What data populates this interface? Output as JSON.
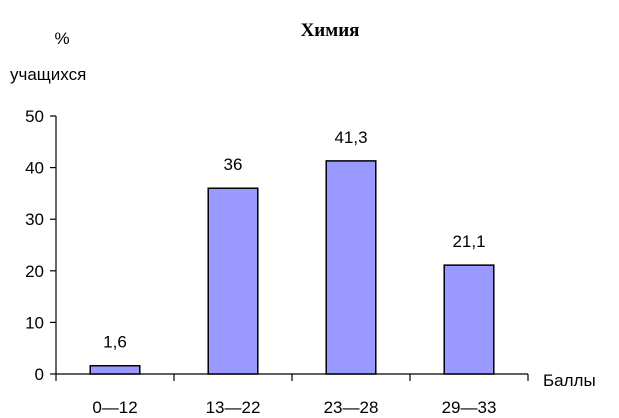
{
  "chart_data": {
    "type": "bar",
    "title": "Химия",
    "ylabel_line1": "%",
    "ylabel_line2": "учащихся",
    "xlabel": "Баллы",
    "categories": [
      "0—12",
      "13—22",
      "23—28",
      "29—33"
    ],
    "values": [
      1.6,
      36,
      41.3,
      21.1
    ],
    "value_labels": [
      "1,6",
      "36",
      "41,3",
      "21,1"
    ],
    "ylim": [
      0,
      50
    ],
    "yticks": [
      0,
      10,
      20,
      30,
      40,
      50
    ],
    "grid": false,
    "legend": "none",
    "bar_color": "#9999ff"
  }
}
